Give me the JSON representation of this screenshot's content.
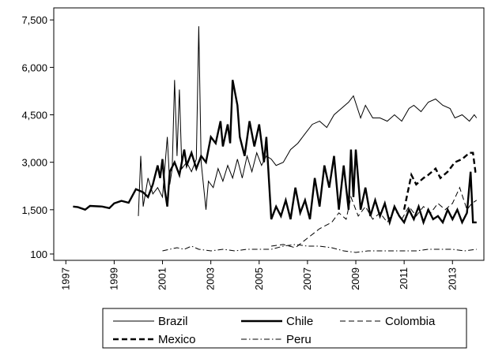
{
  "chart_data": {
    "type": "line",
    "xlim": [
      1996.5,
      2014.3
    ],
    "xticks": [
      1997,
      1999,
      2001,
      2003,
      2005,
      2007,
      2009,
      2011,
      2013
    ],
    "ylim": [
      -100,
      7880
    ],
    "yticks": [
      100,
      {
        "value": 1500,
        "label": "1,500"
      },
      {
        "value": 3000,
        "label": "3,000"
      },
      {
        "value": 4500,
        "label": "4,500"
      },
      {
        "value": 6000,
        "label": "6,000"
      },
      {
        "value": 7500,
        "label": "7,500"
      }
    ],
    "legend": "bottom",
    "series": [
      {
        "name": "Brazil",
        "color": "#000000",
        "line_style": "solid",
        "line_weight": "thin",
        "x": [
          2000.0,
          2000.1,
          2000.2,
          2000.4,
          2000.6,
          2000.8,
          2001.0,
          2001.2,
          2001.3,
          2001.4,
          2001.5,
          2001.6,
          2001.7,
          2001.8,
          2002.0,
          2002.2,
          2002.4,
          2002.5,
          2002.6,
          2002.8,
          2002.9,
          2003.1,
          2003.3,
          2003.5,
          2003.7,
          2003.9,
          2004.1,
          2004.3,
          2004.5,
          2004.7,
          2004.9,
          2005.1,
          2005.3,
          2005.5,
          2005.7,
          2006.0,
          2006.3,
          2006.6,
          2006.9,
          2007.2,
          2007.5,
          2007.8,
          2008.1,
          2008.4,
          2008.7,
          2008.9,
          2009.2,
          2009.4,
          2009.7,
          2010.0,
          2010.3,
          2010.6,
          2010.9,
          2011.2,
          2011.4,
          2011.7,
          2012.0,
          2012.3,
          2012.6,
          2012.9,
          2013.1,
          2013.4,
          2013.7,
          2013.9,
          2014.0
        ],
        "values": [
          1300,
          3200,
          1600,
          2500,
          2000,
          2200,
          1900,
          3800,
          2300,
          2800,
          5600,
          3200,
          5300,
          2800,
          3000,
          2700,
          3100,
          7300,
          3000,
          1500,
          2400,
          2200,
          2800,
          2400,
          2900,
          2500,
          3100,
          2500,
          3200,
          2700,
          3300,
          2900,
          3200,
          3100,
          2900,
          3000,
          3400,
          3600,
          3900,
          4200,
          4300,
          4100,
          4500,
          4700,
          4900,
          5100,
          4400,
          4800,
          4400,
          4400,
          4300,
          4500,
          4300,
          4700,
          4800,
          4600,
          4900,
          5000,
          4800,
          4700,
          4400,
          4500,
          4300,
          4500,
          4400
        ]
      },
      {
        "name": "Chile",
        "color": "#000000",
        "line_style": "solid",
        "line_weight": "thick",
        "x": [
          1997.3,
          1997.5,
          1997.8,
          1998.0,
          1998.5,
          1998.8,
          1999.0,
          1999.3,
          1999.6,
          1999.9,
          2000.2,
          2000.4,
          2000.6,
          2000.8,
          2000.9,
          2001.0,
          2001.1,
          2001.2,
          2001.3,
          2001.5,
          2001.7,
          2001.9,
          2002.0,
          2002.2,
          2002.4,
          2002.6,
          2002.8,
          2003.0,
          2003.2,
          2003.4,
          2003.5,
          2003.7,
          2003.8,
          2003.9,
          2004.1,
          2004.2,
          2004.4,
          2004.6,
          2004.8,
          2005.0,
          2005.2,
          2005.3,
          2005.5,
          2005.7,
          2005.9,
          2006.1,
          2006.3,
          2006.5,
          2006.7,
          2006.9,
          2007.1,
          2007.3,
          2007.5,
          2007.7,
          2007.9,
          2008.1,
          2008.3,
          2008.5,
          2008.7,
          2008.8,
          2008.9,
          2009.0,
          2009.2,
          2009.4,
          2009.6,
          2009.8,
          2010.0,
          2010.2,
          2010.4,
          2010.6,
          2010.8,
          2011.0,
          2011.2,
          2011.4,
          2011.6,
          2011.8,
          2012.0,
          2012.2,
          2012.4,
          2012.6,
          2012.8,
          2013.0,
          2013.2,
          2013.4,
          2013.6,
          2013.75,
          2013.85,
          2014.0
        ],
        "values": [
          1600,
          1580,
          1500,
          1620,
          1600,
          1550,
          1700,
          1780,
          1720,
          2150,
          2050,
          1900,
          2300,
          2900,
          2500,
          3100,
          2100,
          1600,
          2700,
          3000,
          2600,
          3400,
          2900,
          3300,
          2800,
          3200,
          3000,
          3800,
          3600,
          4300,
          3500,
          4200,
          3600,
          5600,
          4800,
          3800,
          3200,
          4300,
          3500,
          4200,
          3000,
          3800,
          1200,
          1600,
          1300,
          1800,
          1200,
          2200,
          1400,
          1800,
          1200,
          2500,
          1600,
          2900,
          2200,
          3200,
          1500,
          2900,
          1500,
          3400,
          1900,
          3400,
          1500,
          2200,
          1300,
          1800,
          1300,
          1700,
          1100,
          1600,
          1300,
          1100,
          1500,
          1200,
          1600,
          1100,
          1500,
          1200,
          1300,
          1100,
          1500,
          1200,
          1500,
          1100,
          1400,
          2700,
          1100,
          1100
        ]
      },
      {
        "name": "Colombia",
        "color": "#000000",
        "line_style": "dashed",
        "line_weight": "thin",
        "x": [
          2005.5,
          2006.0,
          2006.5,
          2007.0,
          2007.5,
          2008.0,
          2008.3,
          2008.6,
          2008.8,
          2009.1,
          2009.4,
          2009.7,
          2010.0,
          2010.3,
          2010.6,
          2010.9,
          2011.2,
          2011.5,
          2011.8,
          2012.1,
          2012.4,
          2012.7,
          2013.0,
          2013.3,
          2013.6,
          2013.8,
          2014.0
        ],
        "values": [
          350,
          400,
          300,
          600,
          900,
          1100,
          1400,
          1200,
          1900,
          1300,
          1600,
          1200,
          1400,
          1100,
          1500,
          1200,
          1600,
          1300,
          1600,
          1400,
          1700,
          1500,
          1700,
          2200,
          1500,
          1700,
          1800
        ]
      },
      {
        "name": "Mexico",
        "color": "#000000",
        "line_style": "dashed",
        "line_weight": "thick",
        "x": [
          2011.0,
          2011.3,
          2011.5,
          2011.8,
          2012.0,
          2012.3,
          2012.5,
          2012.8,
          2013.1,
          2013.4,
          2013.7,
          2013.85,
          2013.95,
          2014.0
        ],
        "values": [
          1500,
          2600,
          2300,
          2500,
          2600,
          2800,
          2500,
          2700,
          3000,
          3100,
          3300,
          3300,
          2700,
          2700
        ]
      },
      {
        "name": "Peru",
        "color": "#000000",
        "line_style": "dashdot",
        "line_weight": "thin",
        "x": [
          2001.0,
          2001.3,
          2001.6,
          2001.9,
          2002.2,
          2002.5,
          2003.0,
          2003.5,
          2004.0,
          2004.5,
          2005.0,
          2005.5,
          2006.0,
          2006.5,
          2007.0,
          2007.5,
          2008.0,
          2008.5,
          2009.0,
          2009.5,
          2010.0,
          2010.5,
          2011.0,
          2011.5,
          2012.0,
          2012.5,
          2013.0,
          2013.5,
          2014.0
        ],
        "values": [
          200,
          250,
          300,
          250,
          350,
          250,
          200,
          250,
          200,
          250,
          250,
          250,
          350,
          400,
          350,
          350,
          300,
          200,
          150,
          200,
          200,
          200,
          200,
          200,
          250,
          250,
          250,
          200,
          250
        ]
      }
    ]
  }
}
